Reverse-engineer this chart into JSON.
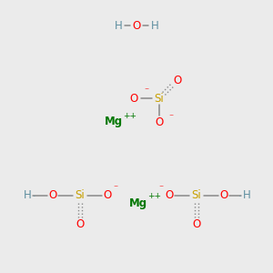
{
  "bg_color": "#ebebeb",
  "colors": {
    "H": "#5f8fa0",
    "O": "#ff0000",
    "Si": "#c8a000",
    "Mg": "#007700",
    "bond": "#888888"
  },
  "figsize": [
    3.0,
    3.0
  ],
  "dpi": 100
}
